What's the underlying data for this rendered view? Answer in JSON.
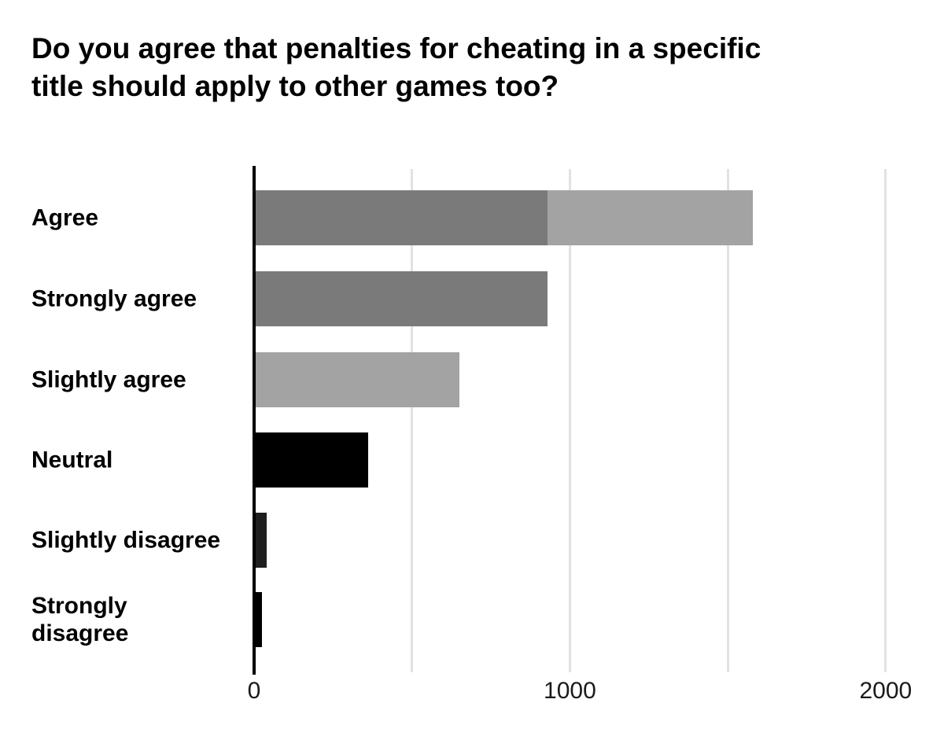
{
  "chart_data": {
    "type": "bar",
    "orientation": "horizontal",
    "title": "Do you agree that penalties for cheating in a specific title should apply to other games too?",
    "categories": [
      "Agree",
      "Strongly agree",
      "Slightly agree",
      "Neutral",
      "Slightly disagree",
      "Strongly disagree"
    ],
    "values": [
      1580,
      930,
      650,
      360,
      40,
      25
    ],
    "bars": [
      {
        "category": "Agree",
        "total": 1580,
        "segments": [
          {
            "name": "strongly-agree-portion",
            "value": 930,
            "color": "#7a7a7a"
          },
          {
            "name": "slightly-agree-portion",
            "value": 650,
            "color": "#a3a3a3"
          }
        ]
      },
      {
        "category": "Strongly agree",
        "total": 930,
        "segments": [
          {
            "name": "strongly-agree",
            "value": 930,
            "color": "#7a7a7a"
          }
        ]
      },
      {
        "category": "Slightly agree",
        "total": 650,
        "segments": [
          {
            "name": "slightly-agree",
            "value": 650,
            "color": "#a3a3a3"
          }
        ]
      },
      {
        "category": "Neutral",
        "total": 360,
        "segments": [
          {
            "name": "neutral",
            "value": 360,
            "color": "#000000"
          }
        ]
      },
      {
        "category": "Slightly disagree",
        "total": 40,
        "segments": [
          {
            "name": "slightly-disagree",
            "value": 40,
            "color": "#1f1f1f"
          }
        ]
      },
      {
        "category": "Strongly disagree",
        "total": 25,
        "segments": [
          {
            "name": "strongly-disagree",
            "value": 25,
            "color": "#000000"
          }
        ]
      }
    ],
    "xlabel": "",
    "ylabel": "",
    "xlim": [
      0,
      2100
    ],
    "xticks": [
      {
        "value": 0,
        "label": "0"
      },
      {
        "value": 1000,
        "label": "1000"
      },
      {
        "value": 2000,
        "label": "2000"
      }
    ],
    "gridline_values": [
      500,
      1000,
      1500,
      2000
    ],
    "grid": true,
    "legend": false,
    "colors": {
      "dark_gray_bar": "#7a7a7a",
      "light_gray_bar": "#a3a3a3",
      "black_bar": "#000000",
      "charcoal_bar": "#1f1f1f",
      "gridline": "#e2e2e2",
      "axis": "#000000",
      "title_text": "#000000",
      "label_text": "#000000",
      "tick_text": "#1a1a1a",
      "background": "#ffffff"
    }
  }
}
